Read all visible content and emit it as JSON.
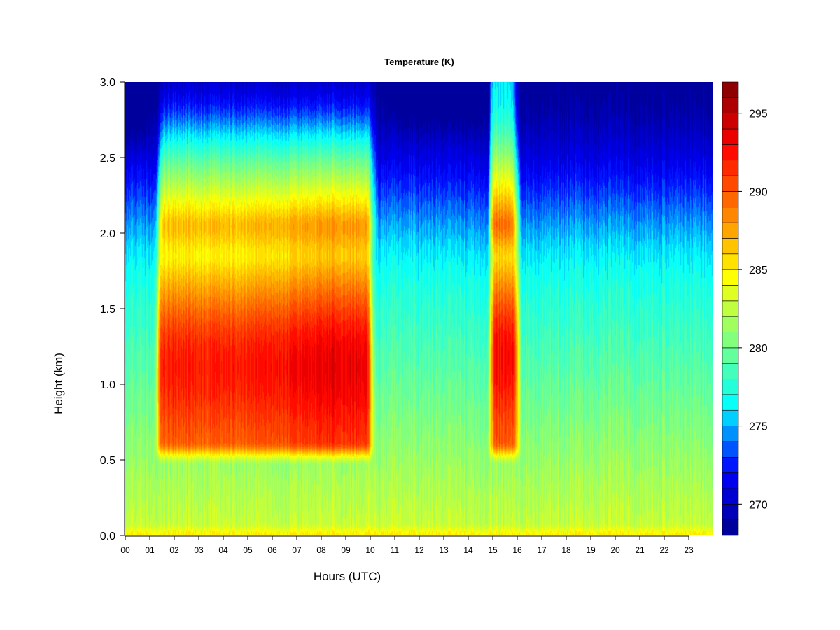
{
  "chart_data": {
    "type": "heatmap",
    "title": "Temperature (K)",
    "xlabel": "Hours (UTC)",
    "ylabel": "Height (km)",
    "xlim": [
      0,
      24
    ],
    "ylim": [
      0.0,
      3.0
    ],
    "x_ticks": [
      "00",
      "01",
      "02",
      "03",
      "04",
      "05",
      "06",
      "07",
      "08",
      "09",
      "10",
      "11",
      "12",
      "13",
      "14",
      "15",
      "16",
      "17",
      "18",
      "19",
      "20",
      "21",
      "22",
      "23"
    ],
    "y_ticks": [
      "0.0",
      "0.5",
      "1.0",
      "1.5",
      "2.0",
      "2.5",
      "3.0"
    ],
    "colorbar": {
      "min": 268,
      "max": 297,
      "levels": 29,
      "ticks": [
        "270",
        "275",
        "280",
        "285",
        "290",
        "295"
      ],
      "colormap": [
        "#00008f",
        "#0000ff",
        "#00ffff",
        "#7fff7f",
        "#ffff00",
        "#ff7f00",
        "#ff0000",
        "#7f0000"
      ]
    },
    "features": {
      "warm_layer_1": {
        "start_hour": 1.3,
        "end_hour": 10.0,
        "base_km": 0.5,
        "top_km": 2.0,
        "peak_K": 296
      },
      "warm_layer_2": {
        "start_hour": 14.9,
        "end_hour": 16.0,
        "base_km": 0.5,
        "top_km": 2.0,
        "peak_K": 296
      },
      "upper_cold_K": 270,
      "surface_K": 283
    }
  }
}
